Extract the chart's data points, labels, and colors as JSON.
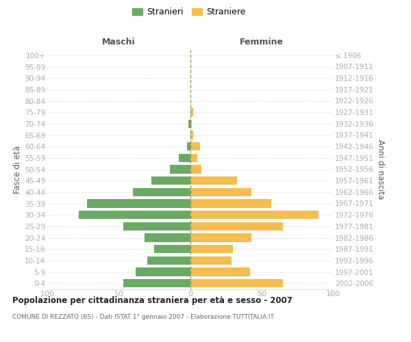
{
  "age_groups": [
    "0-4",
    "5-9",
    "10-14",
    "15-19",
    "20-24",
    "25-29",
    "30-34",
    "35-39",
    "40-44",
    "45-49",
    "50-54",
    "55-59",
    "60-64",
    "65-69",
    "70-74",
    "75-79",
    "80-84",
    "85-89",
    "90-94",
    "95-99",
    "100+"
  ],
  "birth_years": [
    "2002-2006",
    "1997-2001",
    "1992-1996",
    "1987-1991",
    "1982-1986",
    "1977-1981",
    "1972-1976",
    "1967-1971",
    "1962-1966",
    "1957-1961",
    "1952-1956",
    "1947-1951",
    "1942-1946",
    "1937-1941",
    "1932-1936",
    "1927-1931",
    "1922-1926",
    "1917-1921",
    "1912-1916",
    "1907-1911",
    "≤ 1906"
  ],
  "maschi": [
    47,
    38,
    30,
    25,
    32,
    47,
    78,
    72,
    40,
    27,
    14,
    8,
    2,
    0,
    1,
    0,
    0,
    0,
    0,
    0,
    0
  ],
  "femmine": [
    65,
    42,
    29,
    30,
    43,
    65,
    90,
    57,
    43,
    33,
    8,
    5,
    7,
    2,
    1,
    2,
    0,
    0,
    0,
    0,
    0
  ],
  "maschi_color": "#6aaa64",
  "femmine_color": "#f5bd4f",
  "title": "Popolazione per cittadinanza straniera per età e sesso - 2007",
  "subtitle": "COMUNE DI REZZATO (BS) - Dati ISTAT 1° gennaio 2007 - Elaborazione TUTTITALIA.IT",
  "header_left": "Maschi",
  "header_right": "Femmine",
  "ylabel_left": "Fasce di età",
  "ylabel_right": "Anni di nascita",
  "legend_stranieri": "Stranieri",
  "legend_straniere": "Straniere",
  "xlim": 100,
  "background_color": "#ffffff",
  "bar_height": 0.75,
  "grid_color": "#dddddd",
  "tick_color": "#aaaaaa",
  "text_color": "#666666",
  "header_color": "#555555",
  "title_color": "#222222",
  "vline_color": "#999966"
}
